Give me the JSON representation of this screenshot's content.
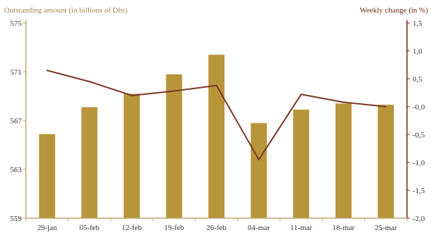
{
  "chart_data": {
    "type": "bar",
    "categories": [
      "29-jan",
      "05-feb",
      "12-feb",
      "19-feb",
      "26-feb",
      "04-mar",
      "11-mar",
      "18-mar",
      "25-mar"
    ],
    "series": [
      {
        "type": "bar",
        "axis": "left",
        "values": [
          565.9,
          568.1,
          569.2,
          570.8,
          572.4,
          566.8,
          567.9,
          568.4,
          568.3
        ]
      },
      {
        "type": "line",
        "axis": "right",
        "values": [
          0.65,
          0.45,
          0.2,
          0.28,
          0.38,
          -0.95,
          0.22,
          0.08,
          0.0
        ]
      }
    ],
    "y_left": {
      "title": "Outstanding amount (in billions of Dhs)",
      "min": 559,
      "max": 575,
      "ticks": [
        559,
        563,
        567,
        571,
        575
      ],
      "tick_labels": [
        "559",
        "563",
        "567",
        "571",
        "575"
      ]
    },
    "y_right": {
      "title": "Weekly change (in %)",
      "min": -2.0,
      "max": 1.5,
      "ticks": [
        -2.0,
        -1.5,
        -1.0,
        -0.5,
        0.0,
        0.5,
        1.0,
        1.5
      ],
      "tick_labels": [
        "-2,0",
        "-1,5",
        "-1,0",
        "-0,5",
        "-0,0",
        "0,5",
        "1,0",
        "1,5"
      ]
    },
    "grid": false,
    "legend": "none",
    "colors": {
      "bar": "#b8953a",
      "line": "#7a3626",
      "left_axis": "#bfa76a",
      "right_axis": "#6e2a1a",
      "left_title": "#a08a4a",
      "right_title": "#6e2a1a"
    }
  }
}
